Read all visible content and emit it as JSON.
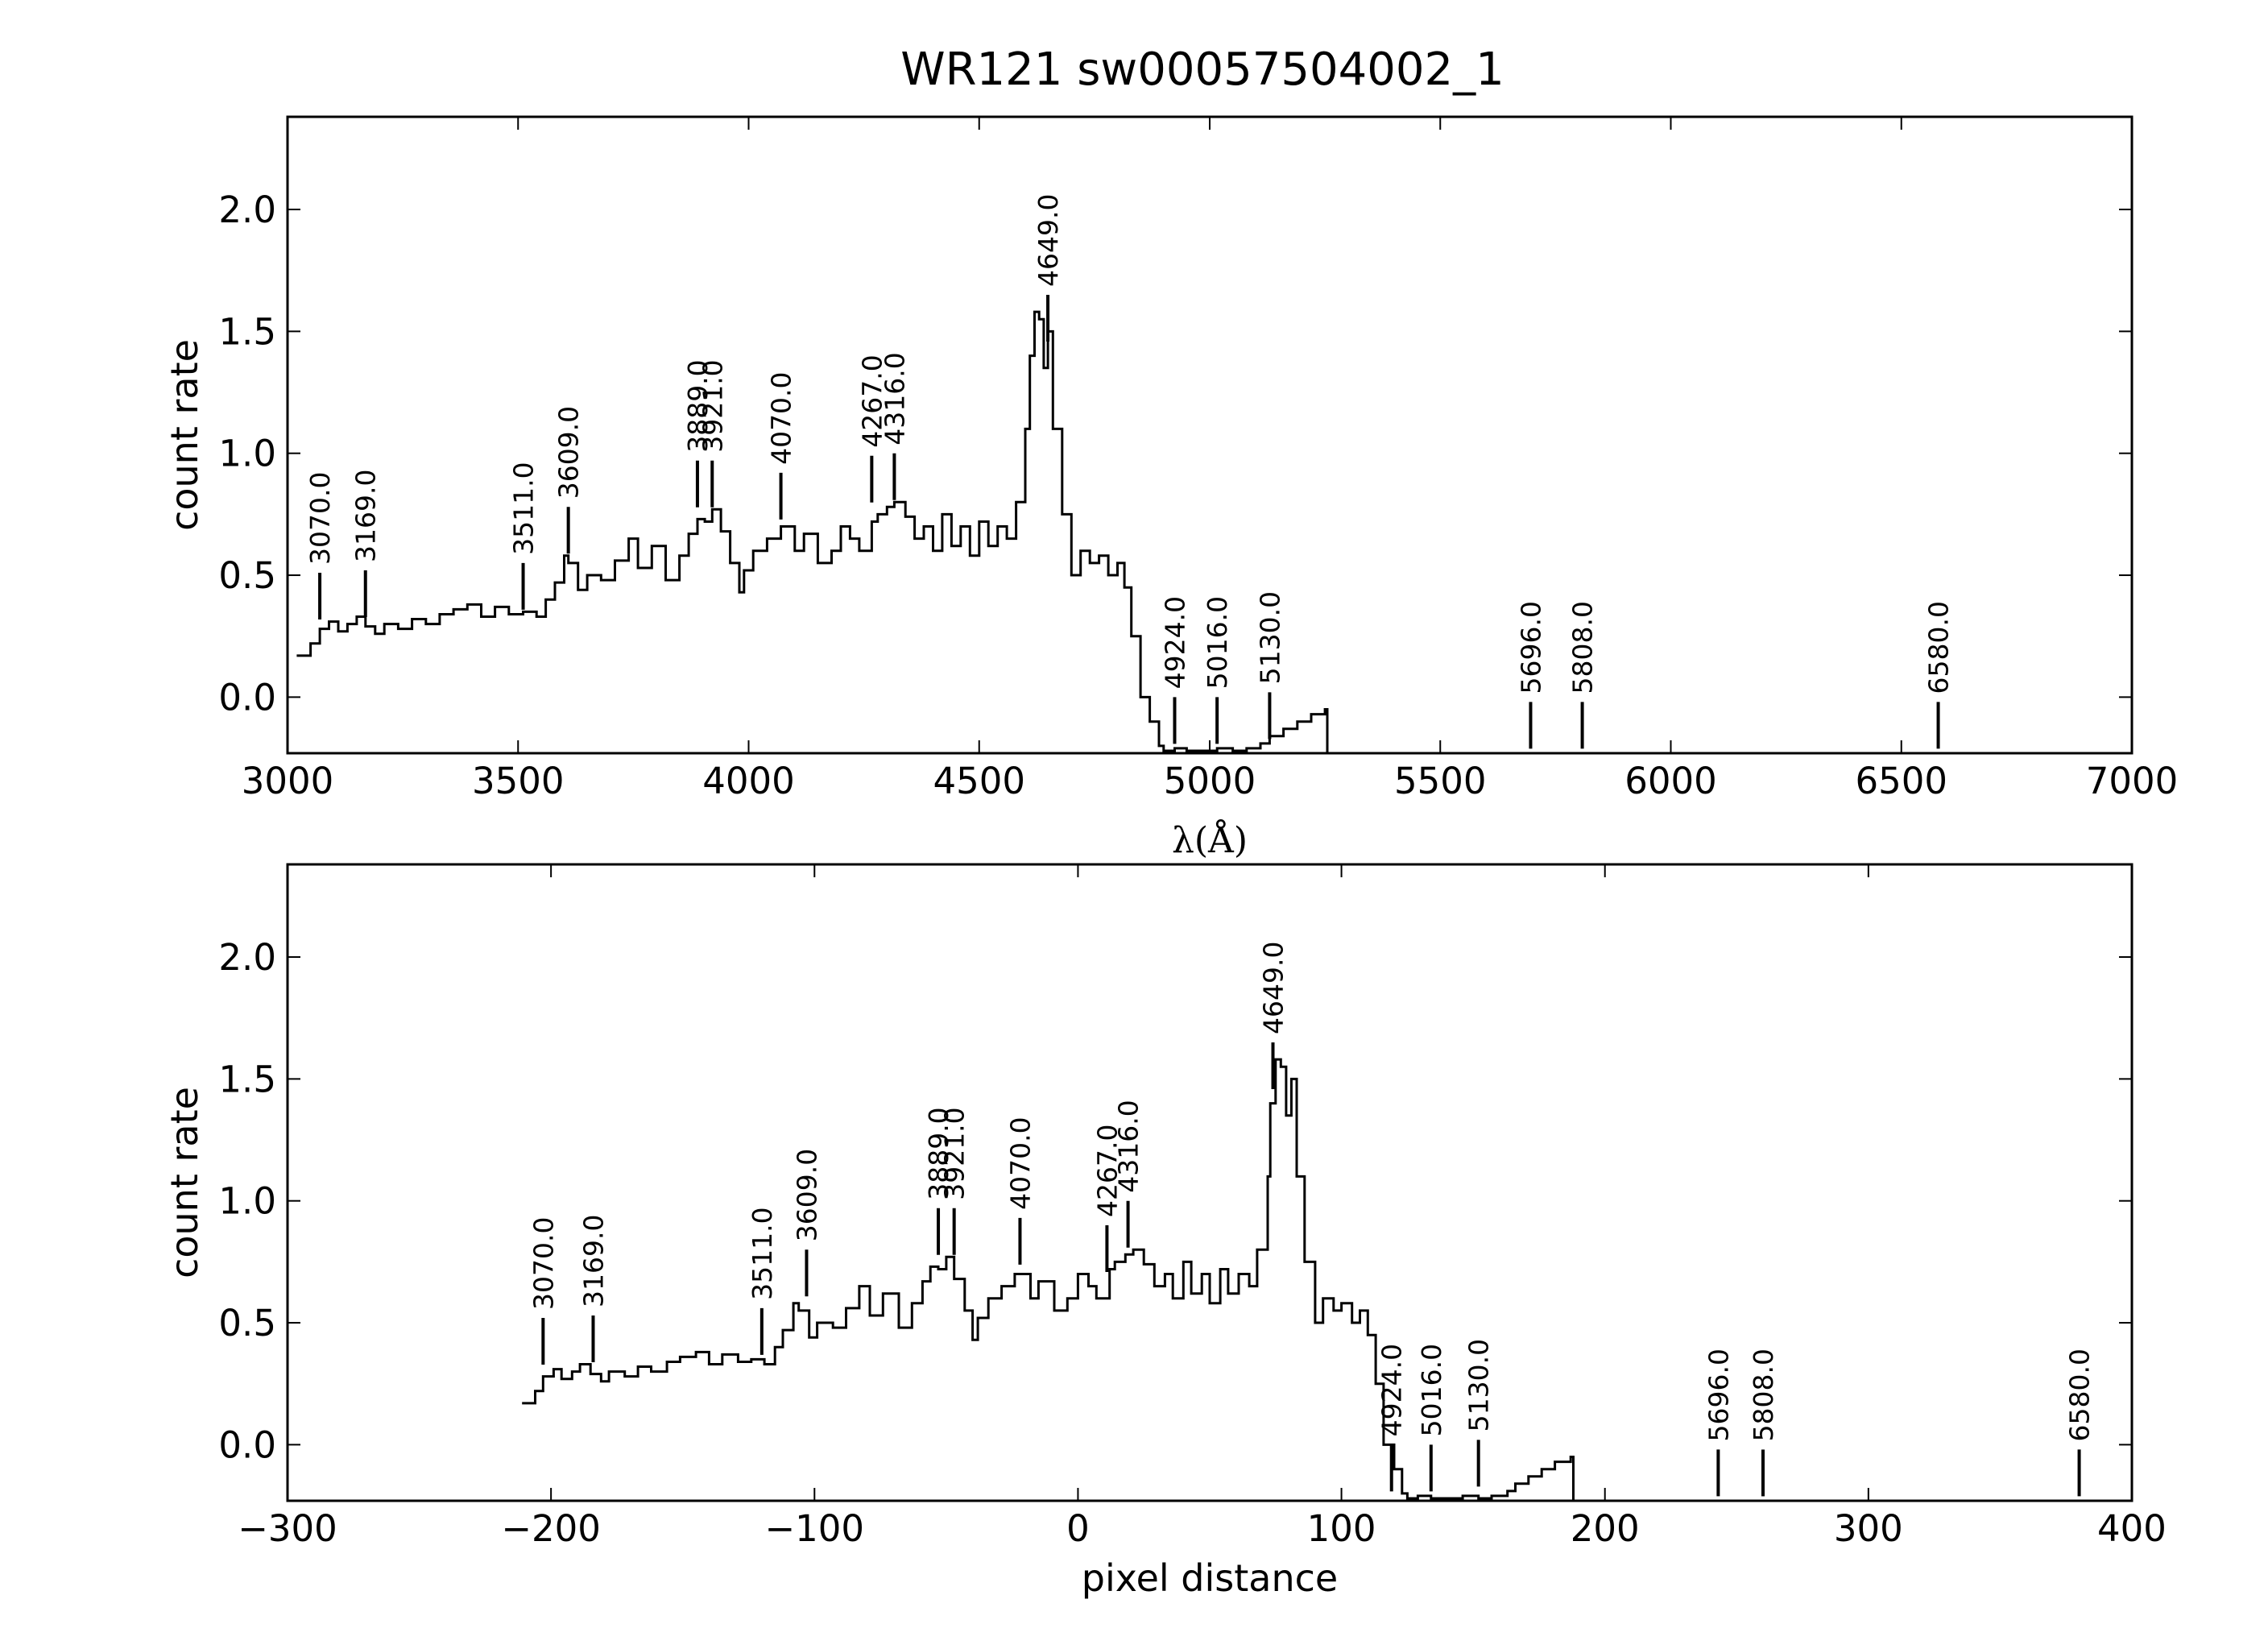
{
  "title": "WR121  sw00057504002_1",
  "chart_data": [
    {
      "type": "line",
      "panel": "top",
      "xlabel": "λ(Å)",
      "ylabel": "count rate",
      "xlim": [
        3000,
        7000
      ],
      "ylim": [
        -0.23,
        2.38
      ],
      "xticks": [
        3000,
        3500,
        4000,
        4500,
        5000,
        5500,
        6000,
        6500,
        7000
      ],
      "xtick_labels": [
        "3000",
        "3500",
        "4000",
        "4500",
        "5000",
        "5500",
        "6000",
        "6500",
        "7000"
      ],
      "yticks": [
        0.0,
        0.5,
        1.0,
        1.5,
        2.0
      ],
      "ytick_labels": [
        "0.0",
        "0.5",
        "1.0",
        "1.5",
        "2.0"
      ],
      "grid": false,
      "series": [
        {
          "x": [
            3020,
            3050,
            3070,
            3090,
            3110,
            3130,
            3150,
            3169,
            3190,
            3210,
            3240,
            3270,
            3300,
            3330,
            3360,
            3390,
            3420,
            3450,
            3480,
            3511,
            3540,
            3560,
            3580,
            3600,
            3609,
            3630,
            3650,
            3680,
            3710,
            3740,
            3760,
            3790,
            3820,
            3850,
            3870,
            3889,
            3905,
            3921,
            3940,
            3960,
            3980,
            3990,
            4010,
            4040,
            4070,
            4100,
            4120,
            4150,
            4180,
            4200,
            4220,
            4240,
            4267,
            4280,
            4300,
            4316,
            4340,
            4360,
            4380,
            4400,
            4420,
            4440,
            4460,
            4480,
            4500,
            4520,
            4540,
            4560,
            4580,
            4600,
            4610,
            4620,
            4630,
            4640,
            4649,
            4660,
            4680,
            4700,
            4720,
            4740,
            4760,
            4780,
            4800,
            4815,
            4830,
            4850,
            4870,
            4890,
            4900,
            4924,
            4950,
            4980,
            5016,
            5050,
            5080,
            5110,
            5130,
            5160,
            5190,
            5220,
            5250,
            5255,
            5300,
            5500,
            5696,
            5808,
            6000,
            6300,
            6580,
            6650
          ],
          "y": [
            0.17,
            0.22,
            0.28,
            0.31,
            0.27,
            0.3,
            0.33,
            0.29,
            0.26,
            0.3,
            0.28,
            0.32,
            0.3,
            0.34,
            0.36,
            0.38,
            0.33,
            0.37,
            0.34,
            0.35,
            0.33,
            0.4,
            0.47,
            0.58,
            0.55,
            0.44,
            0.5,
            0.48,
            0.56,
            0.65,
            0.53,
            0.62,
            0.48,
            0.58,
            0.67,
            0.73,
            0.72,
            0.77,
            0.68,
            0.55,
            0.43,
            0.52,
            0.6,
            0.65,
            0.7,
            0.6,
            0.67,
            0.55,
            0.6,
            0.7,
            0.65,
            0.6,
            0.72,
            0.75,
            0.78,
            0.8,
            0.74,
            0.65,
            0.7,
            0.6,
            0.75,
            0.62,
            0.7,
            0.58,
            0.72,
            0.62,
            0.7,
            0.65,
            0.8,
            1.1,
            1.4,
            1.58,
            1.55,
            1.35,
            1.5,
            1.1,
            0.75,
            0.5,
            0.6,
            0.55,
            0.58,
            0.5,
            0.55,
            0.45,
            0.25,
            0.0,
            -0.1,
            -0.2,
            -0.22,
            -0.21,
            -0.22,
            -0.22,
            -0.21,
            -0.22,
            -0.21,
            -0.19,
            -0.16,
            -0.13,
            -0.1,
            -0.07,
            -0.05,
            -0.23,
            -0.23,
            -0.23,
            -0.23,
            -0.23,
            -0.23,
            -0.23,
            -0.23,
            -0.23
          ]
        }
      ],
      "line_markers": [
        {
          "label": "3070.0",
          "x": 3070,
          "y_top": 0.51
        },
        {
          "label": "3169.0",
          "x": 3169,
          "y_top": 0.52
        },
        {
          "label": "3511.0",
          "x": 3511,
          "y_top": 0.55
        },
        {
          "label": "3609.0",
          "x": 3609,
          "y_top": 0.78
        },
        {
          "label": "3889.0",
          "x": 3889,
          "y_top": 0.97
        },
        {
          "label": "3921.0",
          "x": 3921,
          "y_top": 0.97
        },
        {
          "label": "4070.0",
          "x": 4070,
          "y_top": 0.92
        },
        {
          "label": "4267.0",
          "x": 4267,
          "y_top": 0.99
        },
        {
          "label": "4316.0",
          "x": 4316,
          "y_top": 1.0
        },
        {
          "label": "4649.0",
          "x": 4649,
          "y_top": 1.65
        },
        {
          "label": "4924.0",
          "x": 4924,
          "y_top": 0.0
        },
        {
          "label": "5016.0",
          "x": 5016,
          "y_top": 0.0
        },
        {
          "label": "5130.0",
          "x": 5130,
          "y_top": 0.02
        },
        {
          "label": "5696.0",
          "x": 5696,
          "y_top": -0.02
        },
        {
          "label": "5808.0",
          "x": 5808,
          "y_top": -0.02
        },
        {
          "label": "6580.0",
          "x": 6580,
          "y_top": -0.02
        }
      ]
    },
    {
      "type": "line",
      "panel": "bottom",
      "xlabel": "pixel distance",
      "ylabel": "count rate",
      "xlim": [
        -300,
        400
      ],
      "ylim": [
        -0.23,
        2.38
      ],
      "xticks": [
        -300,
        -200,
        -100,
        0,
        100,
        200,
        300,
        400
      ],
      "xtick_labels": [
        "−300",
        "−200",
        "−100",
        "0",
        "100",
        "200",
        "300",
        "400"
      ],
      "yticks": [
        0.0,
        0.5,
        1.0,
        1.5,
        2.0
      ],
      "ytick_labels": [
        "0.0",
        "0.5",
        "1.0",
        "1.5",
        "2.0"
      ],
      "grid": false,
      "series": [
        {
          "x": [
            -211,
            -206,
            -203,
            -199,
            -196,
            -192,
            -189,
            -185,
            -181,
            -178,
            -172,
            -167,
            -162,
            -156,
            -151,
            -145,
            -140,
            -135,
            -129,
            -124,
            -119,
            -115,
            -112,
            -108,
            -106,
            -102,
            -99,
            -93,
            -88,
            -83,
            -79,
            -74,
            -68,
            -63,
            -59,
            -56,
            -53,
            -50,
            -47,
            -43,
            -40,
            -38,
            -34,
            -29,
            -24,
            -18,
            -15,
            -9,
            -4,
            0,
            4,
            7,
            12,
            14,
            18,
            21,
            25,
            29,
            33,
            36,
            40,
            43,
            47,
            50,
            54,
            57,
            61,
            65,
            68,
            72,
            73,
            75,
            77,
            79,
            81,
            83,
            86,
            90,
            93,
            97,
            100,
            104,
            107,
            110,
            113,
            116,
            120,
            123,
            125,
            129,
            134,
            139,
            146,
            152,
            157,
            163,
            166,
            171,
            176,
            181,
            187,
            188,
            190,
            220,
            243,
            260,
            300,
            340,
            380,
            390
          ],
          "y": [
            0.17,
            0.22,
            0.28,
            0.31,
            0.27,
            0.3,
            0.33,
            0.29,
            0.26,
            0.3,
            0.28,
            0.32,
            0.3,
            0.34,
            0.36,
            0.38,
            0.33,
            0.37,
            0.34,
            0.35,
            0.33,
            0.4,
            0.47,
            0.58,
            0.55,
            0.44,
            0.5,
            0.48,
            0.56,
            0.65,
            0.53,
            0.62,
            0.48,
            0.58,
            0.67,
            0.73,
            0.72,
            0.77,
            0.68,
            0.55,
            0.43,
            0.52,
            0.6,
            0.65,
            0.7,
            0.6,
            0.67,
            0.55,
            0.6,
            0.7,
            0.65,
            0.6,
            0.72,
            0.75,
            0.78,
            0.8,
            0.74,
            0.65,
            0.7,
            0.6,
            0.75,
            0.62,
            0.7,
            0.58,
            0.72,
            0.62,
            0.7,
            0.65,
            0.8,
            1.1,
            1.4,
            1.58,
            1.55,
            1.35,
            1.5,
            1.1,
            0.75,
            0.5,
            0.6,
            0.55,
            0.58,
            0.5,
            0.55,
            0.45,
            0.25,
            0.0,
            -0.1,
            -0.2,
            -0.22,
            -0.21,
            -0.22,
            -0.22,
            -0.21,
            -0.22,
            -0.21,
            -0.19,
            -0.16,
            -0.13,
            -0.1,
            -0.07,
            -0.05,
            -0.23,
            -0.23,
            -0.23,
            -0.23,
            -0.23,
            -0.23,
            -0.23,
            -0.23,
            -0.23
          ]
        }
      ],
      "line_markers": [
        {
          "label": "3070.0",
          "x": -203,
          "y_top": 0.52
        },
        {
          "label": "3169.0",
          "x": -184,
          "y_top": 0.53
        },
        {
          "label": "3511.0",
          "x": -120,
          "y_top": 0.56
        },
        {
          "label": "3609.0",
          "x": -103,
          "y_top": 0.8
        },
        {
          "label": "3889.0",
          "x": -53,
          "y_top": 0.97
        },
        {
          "label": "3921.0",
          "x": -47,
          "y_top": 0.97
        },
        {
          "label": "4070.0",
          "x": -22,
          "y_top": 0.93
        },
        {
          "label": "4267.0",
          "x": 11,
          "y_top": 0.9
        },
        {
          "label": "4316.0",
          "x": 19,
          "y_top": 1.0
        },
        {
          "label": "4649.0",
          "x": 74,
          "y_top": 1.65
        },
        {
          "label": "4924.0",
          "x": 119,
          "y_top": 0.0
        },
        {
          "label": "5016.0",
          "x": 134,
          "y_top": 0.0
        },
        {
          "label": "5130.0",
          "x": 152,
          "y_top": 0.02
        },
        {
          "label": "5696.0",
          "x": 243,
          "y_top": -0.02
        },
        {
          "label": "5808.0",
          "x": 260,
          "y_top": -0.02
        },
        {
          "label": "6580.0",
          "x": 380,
          "y_top": -0.02
        }
      ]
    }
  ]
}
